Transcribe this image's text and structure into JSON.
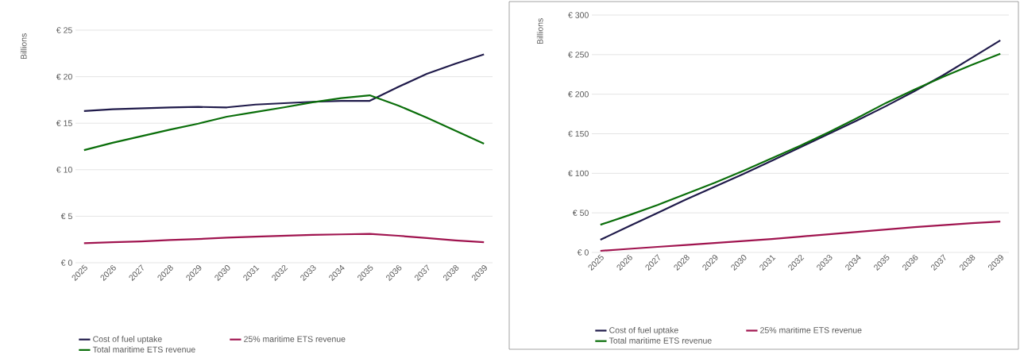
{
  "chart_data": [
    {
      "type": "line",
      "ylabel": "Billions",
      "categories": [
        "2025",
        "2026",
        "2027",
        "2028",
        "2029",
        "2030",
        "2031",
        "2032",
        "2033",
        "2034",
        "2035",
        "2036",
        "2037",
        "2038",
        "2039"
      ],
      "series": [
        {
          "name": "Cost of fuel uptake",
          "color": "#1f1a4a",
          "values": [
            16.3,
            16.5,
            16.6,
            16.7,
            16.75,
            16.7,
            17.0,
            17.15,
            17.3,
            17.4,
            17.4,
            18.9,
            20.3,
            21.4,
            22.4
          ]
        },
        {
          "name": "25% maritime ETS revenue",
          "color": "#a0144f",
          "values": [
            2.1,
            2.2,
            2.3,
            2.45,
            2.55,
            2.7,
            2.8,
            2.9,
            3.0,
            3.05,
            3.1,
            2.9,
            2.65,
            2.4,
            2.2
          ]
        },
        {
          "name": "Total maritime ETS revenue",
          "color": "#0a6e0a",
          "values": [
            12.1,
            12.9,
            13.6,
            14.3,
            14.95,
            15.7,
            16.2,
            16.7,
            17.25,
            17.7,
            18.0,
            16.9,
            15.6,
            14.2,
            12.8
          ]
        }
      ],
      "ylim": [
        0,
        25
      ],
      "yticks": [
        {
          "value": 0,
          "label": "€ 0"
        },
        {
          "value": 5,
          "label": "€ 5"
        },
        {
          "value": 10,
          "label": "€ 10"
        },
        {
          "value": 15,
          "label": "€ 15"
        },
        {
          "value": 20,
          "label": "€ 20"
        },
        {
          "value": 25,
          "label": "€ 25"
        }
      ],
      "grid": "y",
      "legend": "bottom"
    },
    {
      "type": "line",
      "ylabel": "Billions",
      "categories": [
        "2025",
        "2026",
        "2027",
        "2028",
        "2029",
        "2030",
        "2031",
        "2032",
        "2033",
        "2034",
        "2035",
        "2036",
        "2037",
        "2038",
        "2039"
      ],
      "series": [
        {
          "name": "Cost of fuel uptake",
          "color": "#1f1a4a",
          "values": [
            16,
            33,
            50,
            67,
            83,
            99,
            116,
            133,
            150,
            167,
            185,
            204,
            224,
            246,
            268
          ]
        },
        {
          "name": "25% maritime ETS revenue",
          "color": "#a0144f",
          "values": [
            2,
            4.5,
            7,
            9.5,
            12,
            14.5,
            17,
            20,
            23,
            26,
            29,
            32,
            34.5,
            37,
            39
          ]
        },
        {
          "name": "Total maritime ETS revenue",
          "color": "#0a6e0a",
          "values": [
            35,
            47,
            60,
            74,
            88,
            103,
            119,
            135,
            152,
            170,
            189,
            206,
            222,
            237,
            251
          ]
        }
      ],
      "ylim": [
        0,
        300
      ],
      "yticks": [
        {
          "value": 0,
          "label": "€ 0"
        },
        {
          "value": 50,
          "label": "€ 50"
        },
        {
          "value": 100,
          "label": "€ 100"
        },
        {
          "value": 150,
          "label": "€ 150"
        },
        {
          "value": 200,
          "label": "€ 200"
        },
        {
          "value": 250,
          "label": "€ 250"
        },
        {
          "value": 300,
          "label": "€ 300"
        }
      ],
      "grid": "y",
      "legend": "bottom"
    }
  ]
}
